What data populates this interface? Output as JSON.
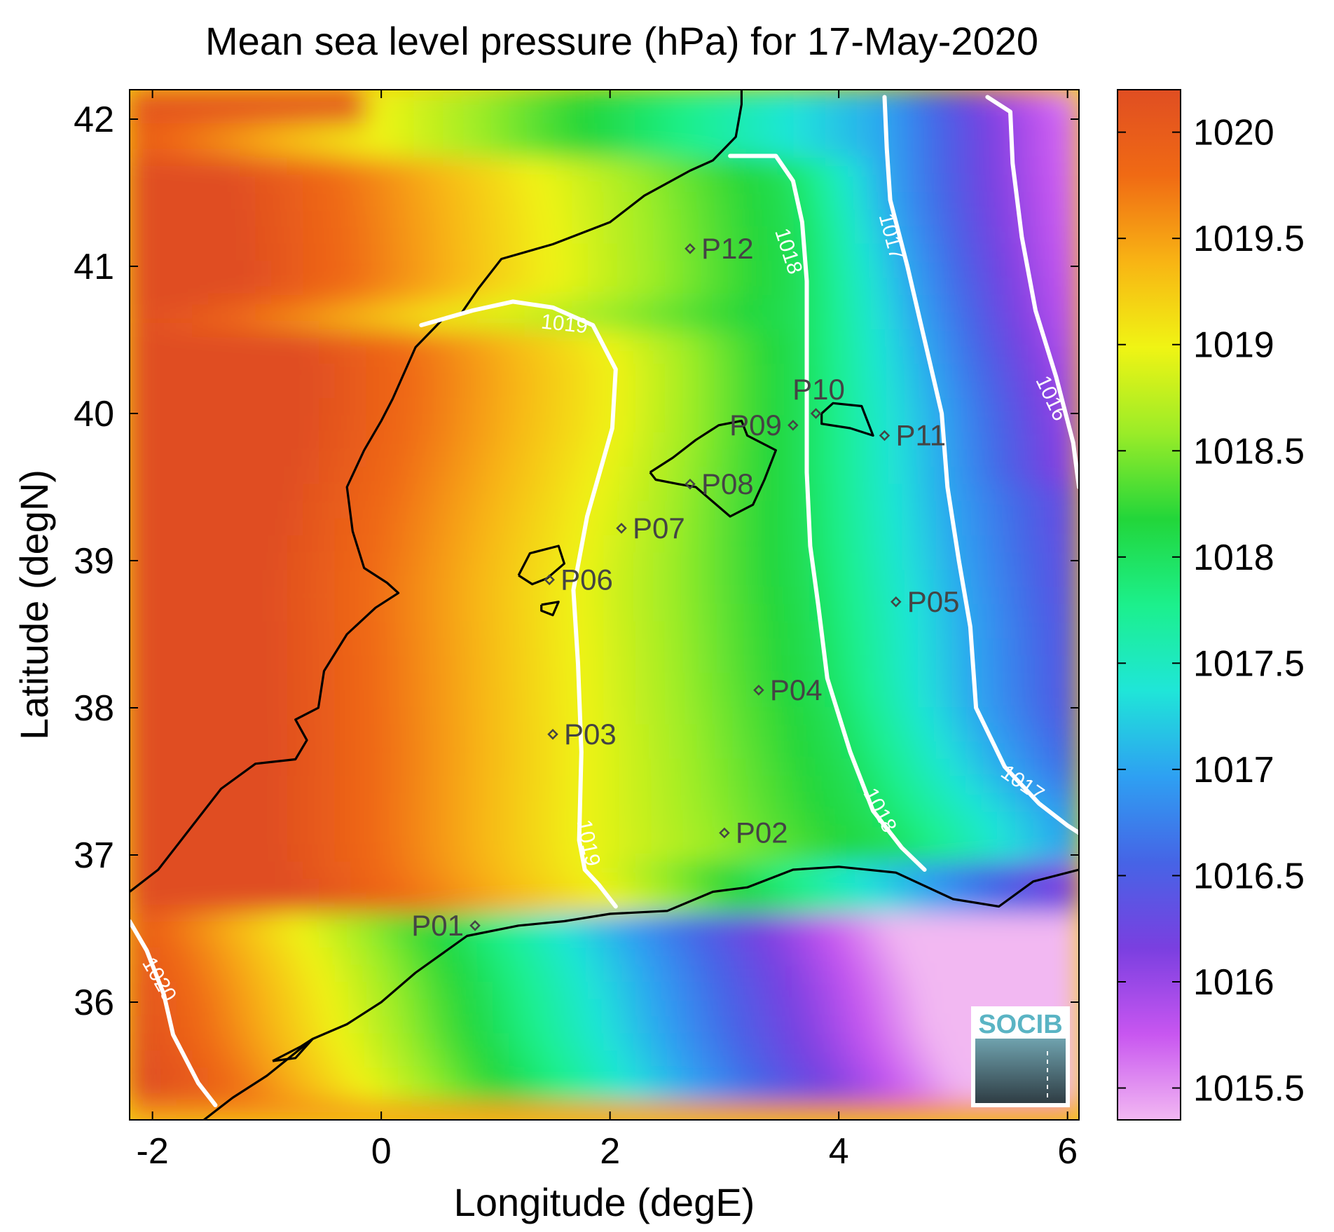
{
  "chart_data": {
    "type": "heatmap",
    "title": "Mean sea level pressure (hPa) for 17-May-2020",
    "xlabel": "Longitude (degE)",
    "ylabel": "Latitude (degN)",
    "xlim": [
      -2.2,
      6.1
    ],
    "ylim": [
      35.2,
      42.2
    ],
    "xticks": [
      -2,
      0,
      2,
      4,
      6
    ],
    "xtick_labels": [
      "-2",
      "0",
      "2",
      "4",
      "6"
    ],
    "yticks": [
      36,
      37,
      38,
      39,
      40,
      41,
      42
    ],
    "ytick_labels": [
      "36",
      "37",
      "38",
      "39",
      "40",
      "41",
      "42"
    ],
    "colorbar": {
      "range": [
        1015.35,
        1020.2
      ],
      "ticks": [
        1015.5,
        1016,
        1016.5,
        1017,
        1017.5,
        1018,
        1018.5,
        1019,
        1019.5,
        1020
      ],
      "tick_labels": [
        "1015.5",
        "1016",
        "1016.5",
        "1017",
        "1017.5",
        "1018",
        "1018.5",
        "1019",
        "1019.5",
        "1020"
      ],
      "colors": [
        "#f2b8f2",
        "#c856f0",
        "#7a3fe0",
        "#4664e6",
        "#2ea0f2",
        "#1fe6d8",
        "#1cf08c",
        "#22d63a",
        "#9bec28",
        "#f0f414",
        "#f8b414",
        "#f06a14",
        "#e04e22"
      ]
    },
    "contours": [
      {
        "level": 1020,
        "label": "1020",
        "points": [
          [
            -2.2,
            36.55
          ],
          [
            -2.05,
            36.35
          ],
          [
            -1.9,
            36.05
          ],
          [
            -1.82,
            35.78
          ],
          [
            -1.6,
            35.45
          ],
          [
            -1.45,
            35.3
          ]
        ],
        "label_at": [
          -1.95,
          36.15
        ],
        "label_angle": 60
      },
      {
        "level": 1019,
        "label": "1019",
        "points": [
          [
            0.35,
            40.6
          ],
          [
            0.8,
            40.7
          ],
          [
            1.15,
            40.76
          ],
          [
            1.5,
            40.72
          ],
          [
            1.85,
            40.6
          ],
          [
            2.05,
            40.3
          ],
          [
            2.02,
            39.9
          ],
          [
            1.8,
            39.3
          ],
          [
            1.68,
            38.8
          ],
          [
            1.72,
            38.3
          ],
          [
            1.75,
            37.7
          ],
          [
            1.73,
            37.1
          ],
          [
            1.78,
            36.9
          ],
          [
            1.9,
            36.8
          ],
          [
            2.05,
            36.65
          ]
        ],
        "label_at": [
          1.6,
          40.6
        ],
        "label_angle": 6,
        "label2_at": [
          1.8,
          37.08
        ],
        "label2_angle": 78
      },
      {
        "level": 1018,
        "label": "1018",
        "points": [
          [
            3.05,
            41.75
          ],
          [
            3.45,
            41.75
          ],
          [
            3.6,
            41.58
          ],
          [
            3.68,
            41.3
          ],
          [
            3.72,
            40.9
          ],
          [
            3.72,
            40.5
          ],
          [
            3.72,
            40.1
          ],
          [
            3.72,
            39.6
          ],
          [
            3.75,
            39.1
          ],
          [
            3.82,
            38.7
          ],
          [
            3.9,
            38.2
          ],
          [
            4.1,
            37.7
          ],
          [
            4.3,
            37.3
          ],
          [
            4.55,
            37.05
          ],
          [
            4.75,
            36.9
          ]
        ],
        "label_at": [
          3.55,
          41.1
        ],
        "label_angle": 72,
        "label2_at": [
          4.35,
          37.3
        ],
        "label2_angle": 62
      },
      {
        "level": 1017,
        "label": "1017",
        "points": [
          [
            4.4,
            42.15
          ],
          [
            4.42,
            41.8
          ],
          [
            4.45,
            41.45
          ],
          [
            4.6,
            41.0
          ],
          [
            4.75,
            40.5
          ],
          [
            4.9,
            40.0
          ],
          [
            4.95,
            39.5
          ],
          [
            5.05,
            39.0
          ],
          [
            5.15,
            38.55
          ],
          [
            5.2,
            38.0
          ],
          [
            5.45,
            37.6
          ],
          [
            5.75,
            37.35
          ],
          [
            6.0,
            37.2
          ],
          [
            6.1,
            37.15
          ]
        ],
        "label_at": [
          4.45,
          41.2
        ],
        "label_angle": 75,
        "label2_at": [
          5.6,
          37.48
        ],
        "label2_angle": 35
      },
      {
        "level": 1016,
        "label": "1016",
        "points": [
          [
            5.3,
            42.15
          ],
          [
            5.5,
            42.05
          ],
          [
            5.52,
            41.7
          ],
          [
            5.6,
            41.2
          ],
          [
            5.72,
            40.7
          ],
          [
            5.9,
            40.25
          ],
          [
            6.05,
            39.8
          ],
          [
            6.1,
            39.5
          ]
        ],
        "label_at": [
          5.85,
          40.1
        ],
        "label_angle": 65
      }
    ],
    "stations": [
      {
        "name": "P01",
        "lon": 0.82,
        "lat": 36.52,
        "label_side": "left"
      },
      {
        "name": "P02",
        "lon": 3.0,
        "lat": 37.15,
        "label_side": "right"
      },
      {
        "name": "P03",
        "lon": 1.5,
        "lat": 37.82,
        "label_side": "right"
      },
      {
        "name": "P04",
        "lon": 3.3,
        "lat": 38.12,
        "label_side": "right"
      },
      {
        "name": "P05",
        "lon": 4.5,
        "lat": 38.72,
        "label_side": "right"
      },
      {
        "name": "P06",
        "lon": 1.47,
        "lat": 38.87,
        "label_side": "right"
      },
      {
        "name": "P07",
        "lon": 2.1,
        "lat": 39.22,
        "label_side": "right"
      },
      {
        "name": "P08",
        "lon": 2.7,
        "lat": 39.52,
        "label_side": "right"
      },
      {
        "name": "P09",
        "lon": 3.6,
        "lat": 39.92,
        "label_side": "left"
      },
      {
        "name": "P10",
        "lon": 3.8,
        "lat": 40.0,
        "label_side": "above"
      },
      {
        "name": "P11",
        "lon": 4.4,
        "lat": 39.85,
        "label_side": "right"
      },
      {
        "name": "P12",
        "lon": 2.7,
        "lat": 41.12,
        "label_side": "right"
      }
    ],
    "coastlines": [
      [
        [
          -2.2,
          36.75
        ],
        [
          -1.95,
          36.9
        ],
        [
          -1.7,
          37.15
        ],
        [
          -1.4,
          37.45
        ],
        [
          -1.1,
          37.62
        ],
        [
          -0.75,
          37.65
        ],
        [
          -0.65,
          37.78
        ],
        [
          -0.75,
          37.92
        ],
        [
          -0.55,
          38.0
        ],
        [
          -0.5,
          38.25
        ],
        [
          -0.3,
          38.5
        ],
        [
          -0.05,
          38.68
        ],
        [
          0.15,
          38.78
        ],
        [
          0.05,
          38.85
        ],
        [
          -0.15,
          38.95
        ],
        [
          -0.25,
          39.2
        ],
        [
          -0.3,
          39.5
        ],
        [
          -0.15,
          39.75
        ],
        [
          0.0,
          39.95
        ],
        [
          0.1,
          40.1
        ],
        [
          0.3,
          40.45
        ],
        [
          0.55,
          40.65
        ],
        [
          0.7,
          40.68
        ],
        [
          0.85,
          40.85
        ],
        [
          1.05,
          41.05
        ],
        [
          1.5,
          41.15
        ],
        [
          2.0,
          41.3
        ],
        [
          2.3,
          41.48
        ],
        [
          2.7,
          41.65
        ],
        [
          2.9,
          41.72
        ],
        [
          3.1,
          41.88
        ],
        [
          3.15,
          42.1
        ],
        [
          3.15,
          42.2
        ]
      ],
      [
        [
          -1.55,
          35.2
        ],
        [
          -1.3,
          35.35
        ],
        [
          -1.0,
          35.5
        ],
        [
          -0.6,
          35.75
        ],
        [
          -0.3,
          35.85
        ],
        [
          0.0,
          36.0
        ],
        [
          0.3,
          36.2
        ],
        [
          0.75,
          36.45
        ],
        [
          1.2,
          36.52
        ],
        [
          1.6,
          36.55
        ],
        [
          2.0,
          36.6
        ],
        [
          2.5,
          36.62
        ],
        [
          2.9,
          36.75
        ],
        [
          3.2,
          36.78
        ],
        [
          3.6,
          36.9
        ],
        [
          4.0,
          36.92
        ],
        [
          4.5,
          36.88
        ],
        [
          5.0,
          36.7
        ],
        [
          5.4,
          36.65
        ],
        [
          5.7,
          36.82
        ],
        [
          6.1,
          36.9
        ]
      ],
      [
        [
          2.35,
          39.6
        ],
        [
          2.55,
          39.7
        ],
        [
          2.75,
          39.82
        ],
        [
          2.95,
          39.92
        ],
        [
          3.15,
          39.95
        ],
        [
          3.2,
          39.85
        ],
        [
          3.45,
          39.75
        ],
        [
          3.35,
          39.55
        ],
        [
          3.25,
          39.38
        ],
        [
          3.05,
          39.3
        ],
        [
          2.9,
          39.4
        ],
        [
          2.75,
          39.5
        ],
        [
          2.6,
          39.52
        ],
        [
          2.4,
          39.55
        ],
        [
          2.35,
          39.6
        ]
      ],
      [
        [
          3.85,
          40.0
        ],
        [
          3.95,
          40.07
        ],
        [
          4.2,
          40.05
        ],
        [
          4.3,
          39.85
        ],
        [
          4.1,
          39.9
        ],
        [
          3.85,
          39.93
        ],
        [
          3.85,
          40.0
        ]
      ],
      [
        [
          1.2,
          38.9
        ],
        [
          1.3,
          39.05
        ],
        [
          1.55,
          39.1
        ],
        [
          1.6,
          38.98
        ],
        [
          1.45,
          38.88
        ],
        [
          1.32,
          38.84
        ],
        [
          1.2,
          38.9
        ]
      ],
      [
        [
          1.4,
          38.7
        ],
        [
          1.55,
          38.72
        ],
        [
          1.5,
          38.63
        ],
        [
          1.4,
          38.66
        ],
        [
          1.4,
          38.7
        ]
      ],
      [
        [
          -0.95,
          35.6
        ],
        [
          -0.7,
          35.7
        ],
        [
          -0.6,
          35.75
        ],
        [
          -0.75,
          35.62
        ],
        [
          -0.95,
          35.6
        ]
      ]
    ]
  }
}
